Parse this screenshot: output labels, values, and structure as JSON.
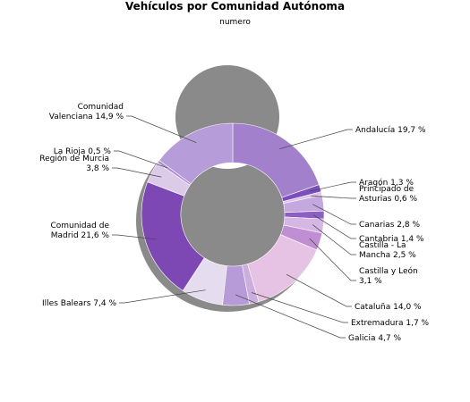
{
  "chart_data": {
    "type": "pie",
    "subtype": "donut",
    "title": "Vehículos por Comunidad Autónoma",
    "subtitle": "numero",
    "slices": [
      {
        "label": [
          "Andalucía 19,7 %"
        ],
        "value": 19.7,
        "color": "#a280cc"
      },
      {
        "label": [
          "Aragón 1,3 %"
        ],
        "value": 1.3,
        "color": "#7a4fbc"
      },
      {
        "label": [
          "Principado de",
          "Asturias 0,6 %"
        ],
        "value": 0.6,
        "color": "#d9c3e8"
      },
      {
        "label": [
          "Canarias 2,8 %"
        ],
        "value": 2.8,
        "color": "#c4a8df"
      },
      {
        "label": [
          "Cantabria 1,4 %"
        ],
        "value": 1.4,
        "color": "#8d5fc3"
      },
      {
        "label": [
          "Castilla - La",
          "Mancha 2,5 %"
        ],
        "value": 2.5,
        "color": "#d6b7e4"
      },
      {
        "label": [
          "Castilla y León",
          "3,1 %"
        ],
        "value": 3.1,
        "color": "#c08fd3"
      },
      {
        "label": [
          "Cataluña 14,0 %"
        ],
        "value": 14.0,
        "color": "#e6c2e4"
      },
      {
        "label": [
          "Extremadura 1,7 %"
        ],
        "value": 1.7,
        "color": "#cbaedd"
      },
      {
        "label": [
          "Galicia 4,7 %"
        ],
        "value": 4.7,
        "color": "#b79ad8"
      },
      {
        "label": [
          "Illes Balears 7,4 %"
        ],
        "value": 7.4,
        "color": "#e6dcef"
      },
      {
        "label": [
          "Comunidad de",
          "Madrid 21,6 %"
        ],
        "value": 21.6,
        "color": "#7d48b3"
      },
      {
        "label": [
          "Región de Murcia",
          "3,8 %"
        ],
        "value": 3.8,
        "color": "#dccae9"
      },
      {
        "label": [
          "La Rioja 0,5 %"
        ],
        "value": 0.5,
        "color": "#a88bd0"
      },
      {
        "label": [
          "Comunidad",
          "Valenciana 14,9 %"
        ],
        "value": 14.9,
        "color": "#b69cd8"
      }
    ]
  }
}
